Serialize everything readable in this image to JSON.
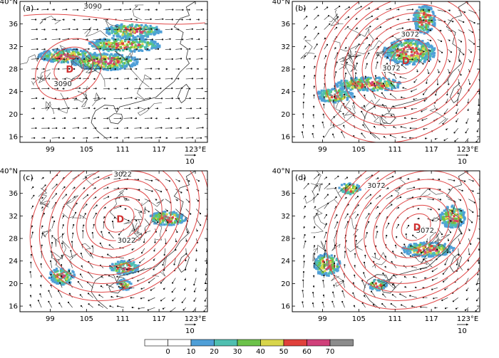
{
  "lat_ticks": [
    "40°N",
    "36",
    "32",
    "28",
    "24",
    "20",
    "16"
  ],
  "lon_ticks": [
    "99",
    "105",
    "111",
    "117",
    "123°E"
  ],
  "vector_scale_label": "10",
  "panels": [
    {
      "id": "a",
      "label": "(a)",
      "contour_labels": [
        "3090",
        "3090"
      ],
      "centers": [
        "D"
      ]
    },
    {
      "id": "b",
      "label": "(b)",
      "contour_labels": [
        "3072",
        "3072"
      ],
      "centers": [
        "D"
      ]
    },
    {
      "id": "c",
      "label": "(c)",
      "contour_labels": [
        "3022",
        "3022"
      ],
      "centers": [
        "D"
      ]
    },
    {
      "id": "d",
      "label": "(d)",
      "contour_labels": [
        "3072",
        "3072"
      ],
      "centers": [
        "D"
      ]
    }
  ],
  "legend": {
    "values": [
      "0",
      "10",
      "20",
      "30",
      "40",
      "50",
      "60",
      "70"
    ],
    "colors": [
      "#ffffff",
      "#ffffff",
      "#4f9fd7",
      "#4fbfb0",
      "#6cc24a",
      "#d8d54a",
      "#e0413b",
      "#d0407a",
      "#8c8c8c"
    ]
  }
}
